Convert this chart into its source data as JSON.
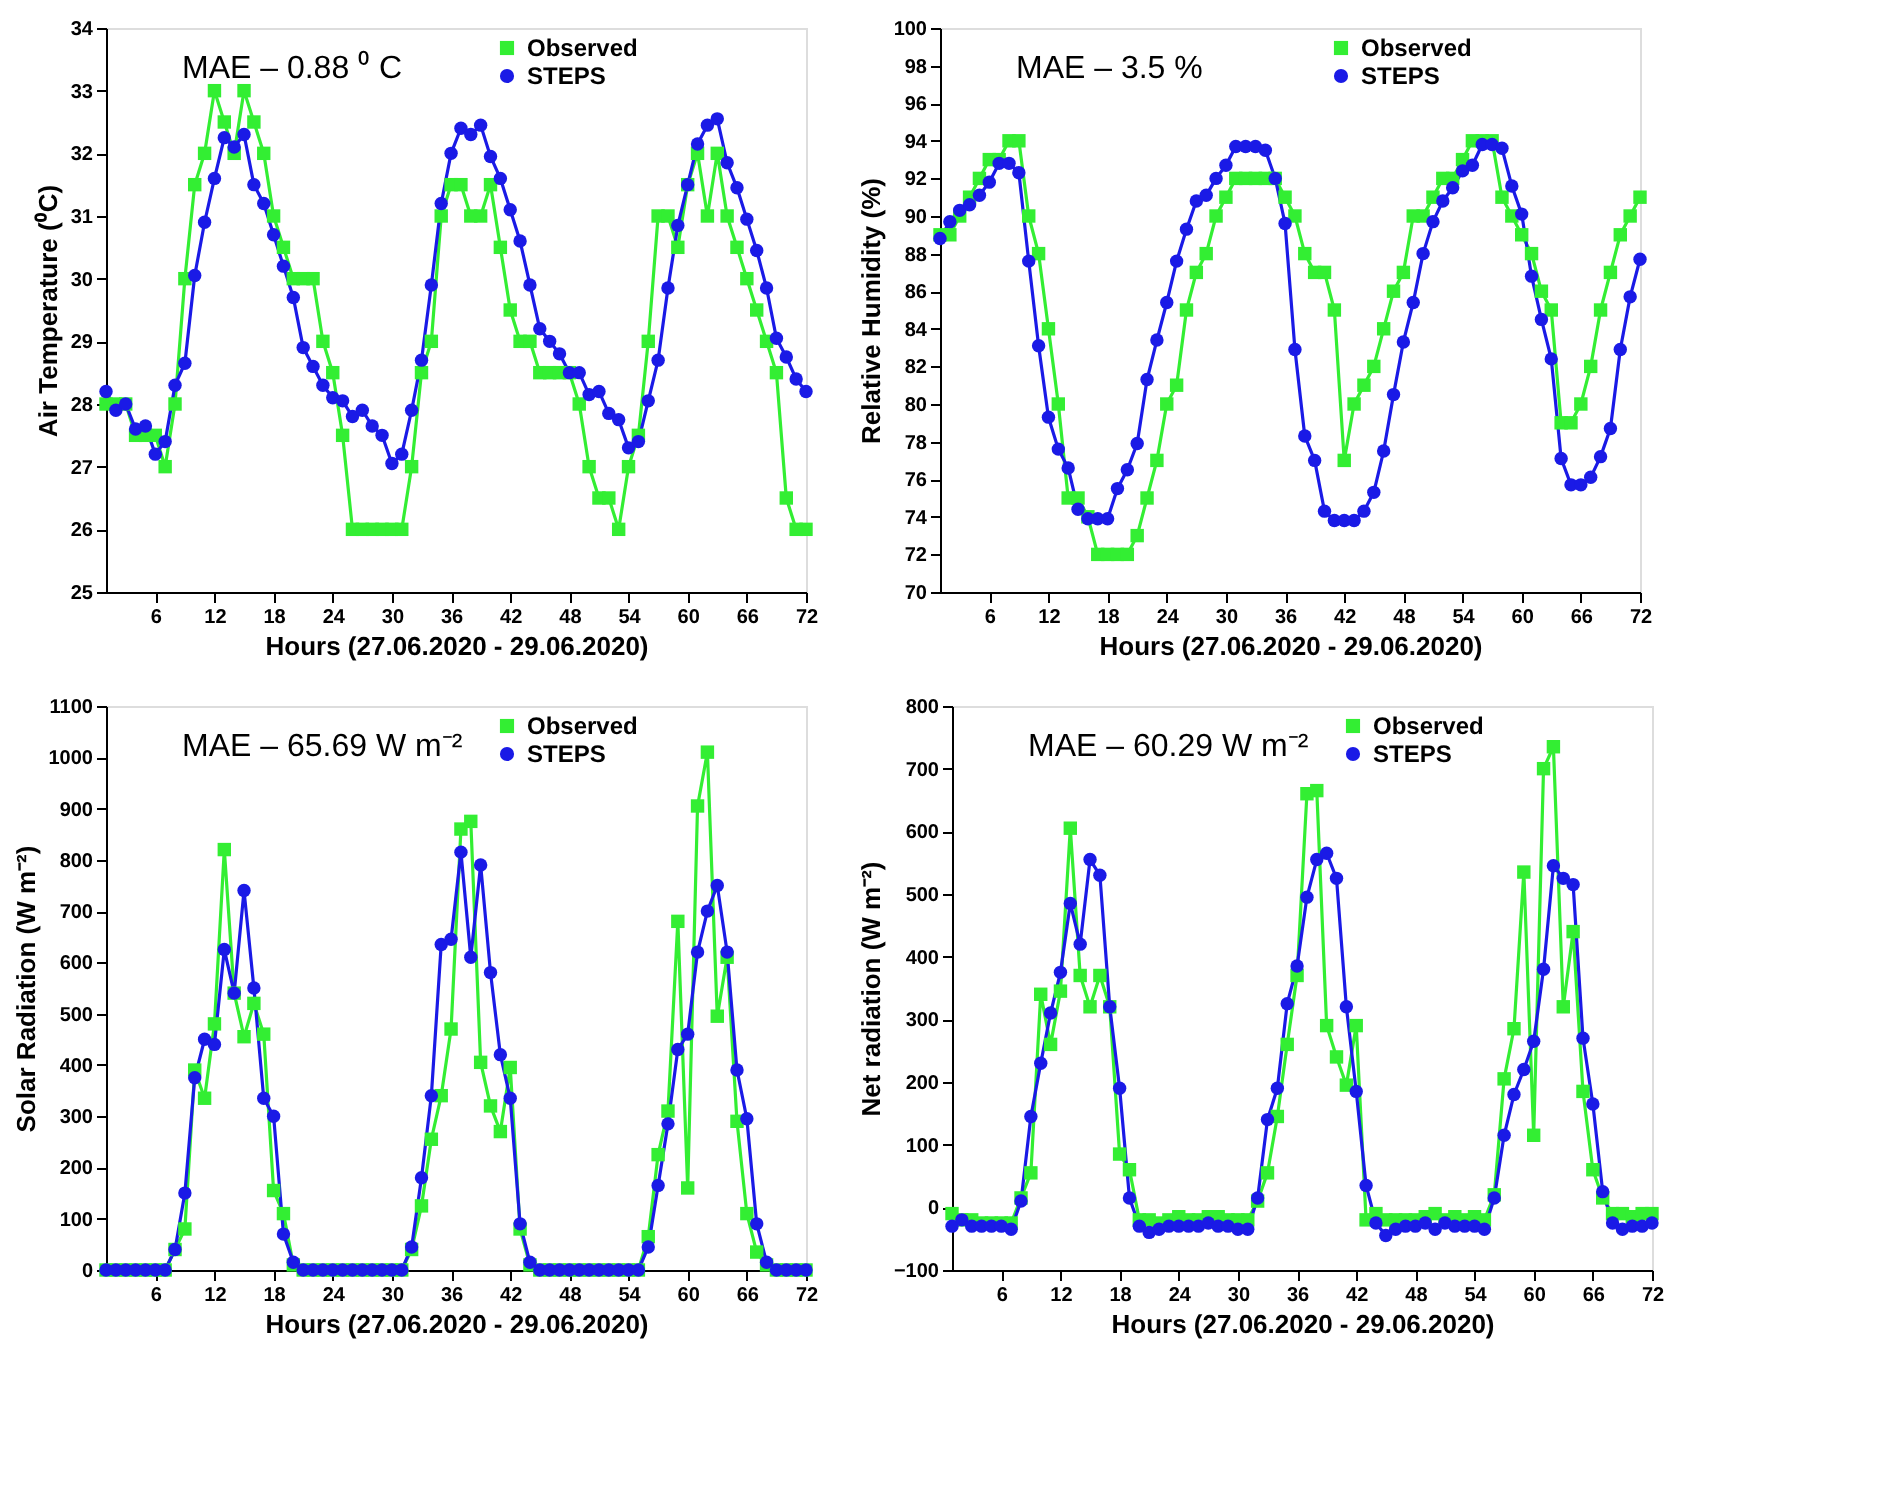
{
  "chart_data": [
    {
      "type": "line",
      "xlabel": "Hours (27.06.2020 - 29.06.2020)",
      "ylabel": "Air Temperature (⁰C)",
      "annotations": [
        "MAE – 0.88 ⁰ C"
      ],
      "xlim": [
        1,
        72
      ],
      "xticks": [
        6,
        12,
        18,
        24,
        30,
        36,
        42,
        48,
        54,
        60,
        66,
        72
      ],
      "ylim": [
        25,
        34
      ],
      "yticks": [
        25,
        26,
        27,
        28,
        29,
        30,
        31,
        32,
        33,
        34
      ],
      "grid": false,
      "legend": "top right",
      "x": [
        1,
        2,
        3,
        4,
        5,
        6,
        7,
        8,
        9,
        10,
        11,
        12,
        13,
        14,
        15,
        16,
        17,
        18,
        19,
        20,
        21,
        22,
        23,
        24,
        25,
        26,
        27,
        28,
        29,
        30,
        31,
        32,
        33,
        34,
        35,
        36,
        37,
        38,
        39,
        40,
        41,
        42,
        43,
        44,
        45,
        46,
        47,
        48,
        49,
        50,
        51,
        52,
        53,
        54,
        55,
        56,
        57,
        58,
        59,
        60,
        61,
        62,
        63,
        64,
        65,
        66,
        67,
        68,
        69,
        70,
        71,
        72
      ],
      "series": [
        {
          "name": "Observed",
          "color": "#33ee33",
          "marker": "square",
          "values": [
            28,
            28,
            28,
            27.5,
            27.5,
            27.5,
            27,
            28,
            30,
            31.5,
            32,
            33,
            32.5,
            32,
            33,
            32.5,
            32,
            31,
            30.5,
            30,
            30,
            30,
            29,
            28.5,
            27.5,
            26,
            26,
            26,
            26,
            26,
            26,
            27,
            28.5,
            29,
            31,
            31.5,
            31.5,
            31,
            31,
            31.5,
            30.5,
            29.5,
            29,
            29,
            28.5,
            28.5,
            28.5,
            28.5,
            28,
            27,
            26.5,
            26.5,
            26,
            27,
            27.5,
            29,
            31,
            31,
            30.5,
            31.5,
            32,
            31,
            32,
            31,
            30.5,
            30,
            29.5,
            29,
            28.5,
            26.5,
            26,
            26
          ]
        },
        {
          "name": "STEPS",
          "color": "#1a1ae6",
          "marker": "circle",
          "values": [
            28.2,
            27.9,
            28,
            27.6,
            27.65,
            27.2,
            27.4,
            28.3,
            28.65,
            30.05,
            30.9,
            31.6,
            32.25,
            32.1,
            32.3,
            31.5,
            31.2,
            30.7,
            30.2,
            29.7,
            28.9,
            28.6,
            28.3,
            28.1,
            28.05,
            27.8,
            27.9,
            27.65,
            27.5,
            27.05,
            27.2,
            27.9,
            28.7,
            29.9,
            31.2,
            32,
            32.4,
            32.3,
            32.45,
            31.95,
            31.6,
            31.1,
            30.6,
            29.9,
            29.2,
            29,
            28.8,
            28.5,
            28.5,
            28.15,
            28.2,
            27.85,
            27.75,
            27.3,
            27.4,
            28.05,
            28.7,
            29.85,
            30.85,
            31.5,
            32.15,
            32.45,
            32.55,
            31.85,
            31.45,
            30.95,
            30.45,
            29.85,
            29.05,
            28.75,
            28.4,
            28.2
          ]
        }
      ]
    },
    {
      "type": "line",
      "xlabel": "Hours (27.06.2020 - 29.06.2020)",
      "ylabel": "Relative Humidity (%)",
      "annotations": [
        "MAE – 3.5 %"
      ],
      "xlim": [
        1,
        72
      ],
      "xticks": [
        6,
        12,
        18,
        24,
        30,
        36,
        42,
        48,
        54,
        60,
        66,
        72
      ],
      "ylim": [
        70,
        100
      ],
      "yticks": [
        70,
        72,
        74,
        76,
        78,
        80,
        82,
        84,
        86,
        88,
        90,
        92,
        94,
        96,
        98,
        100
      ],
      "grid": false,
      "legend": "top right",
      "x": [
        1,
        2,
        3,
        4,
        5,
        6,
        7,
        8,
        9,
        10,
        11,
        12,
        13,
        14,
        15,
        16,
        17,
        18,
        19,
        20,
        21,
        22,
        23,
        24,
        25,
        26,
        27,
        28,
        29,
        30,
        31,
        32,
        33,
        34,
        35,
        36,
        37,
        38,
        39,
        40,
        41,
        42,
        43,
        44,
        45,
        46,
        47,
        48,
        49,
        50,
        51,
        52,
        53,
        54,
        55,
        56,
        57,
        58,
        59,
        60,
        61,
        62,
        63,
        64,
        65,
        66,
        67,
        68,
        69,
        70,
        71,
        72
      ],
      "series": [
        {
          "name": "Observed",
          "color": "#33ee33",
          "marker": "square",
          "values": [
            89,
            89,
            90,
            91,
            92,
            93,
            93,
            94,
            94,
            90,
            88,
            84,
            80,
            75,
            75,
            74,
            72,
            72,
            72,
            72,
            73,
            75,
            77,
            80,
            81,
            85,
            87,
            88,
            90,
            91,
            92,
            92,
            92,
            92,
            92,
            91,
            90,
            88,
            87,
            87,
            85,
            77,
            80,
            81,
            82,
            84,
            86,
            87,
            90,
            90,
            91,
            92,
            92,
            93,
            94,
            94,
            94,
            91,
            90,
            89,
            88,
            86,
            85,
            79,
            79,
            80,
            82,
            85,
            87,
            89,
            90,
            91
          ]
        },
        {
          "name": "STEPS",
          "color": "#1a1ae6",
          "marker": "circle",
          "values": [
            88.8,
            89.7,
            90.3,
            90.6,
            91.1,
            91.8,
            92.8,
            92.8,
            92.3,
            87.6,
            83.1,
            79.3,
            77.6,
            76.6,
            74.4,
            73.9,
            73.9,
            73.9,
            75.5,
            76.5,
            77.9,
            81.3,
            83.4,
            85.4,
            87.6,
            89.3,
            90.8,
            91.1,
            92,
            92.7,
            93.7,
            93.7,
            93.7,
            93.5,
            92,
            89.6,
            82.9,
            78.3,
            77,
            74.3,
            73.8,
            73.8,
            73.8,
            74.3,
            75.3,
            77.5,
            80.5,
            83.3,
            85.4,
            88,
            89.7,
            90.8,
            91.5,
            92.4,
            92.7,
            93.8,
            93.8,
            93.6,
            91.6,
            90.1,
            86.8,
            84.5,
            82.4,
            77.1,
            75.7,
            75.7,
            76.1,
            77.2,
            78.7,
            82.9,
            85.7,
            87.7
          ]
        }
      ]
    },
    {
      "type": "line",
      "xlabel": "Hours (27.06.2020 - 29.06.2020)",
      "ylabel": "Solar Radiation (W m⁻²)",
      "annotations": [
        "MAE – 65.69 W m⁻²"
      ],
      "xlim": [
        1,
        72
      ],
      "xticks": [
        6,
        12,
        18,
        24,
        30,
        36,
        42,
        48,
        54,
        60,
        66,
        72
      ],
      "ylim": [
        0,
        1100
      ],
      "yticks": [
        0,
        100,
        200,
        300,
        400,
        500,
        600,
        700,
        800,
        900,
        1000,
        1100
      ],
      "grid": false,
      "legend": "top right",
      "x": [
        1,
        2,
        3,
        4,
        5,
        6,
        7,
        8,
        9,
        10,
        11,
        12,
        13,
        14,
        15,
        16,
        17,
        18,
        19,
        20,
        21,
        22,
        23,
        24,
        25,
        26,
        27,
        28,
        29,
        30,
        31,
        32,
        33,
        34,
        35,
        36,
        37,
        38,
        39,
        40,
        41,
        42,
        43,
        44,
        45,
        46,
        47,
        48,
        49,
        50,
        51,
        52,
        53,
        54,
        55,
        56,
        57,
        58,
        59,
        60,
        61,
        62,
        63,
        64,
        65,
        66,
        67,
        68,
        69,
        70,
        71,
        72
      ],
      "series": [
        {
          "name": "Observed",
          "color": "#33ee33",
          "marker": "square",
          "values": [
            0,
            0,
            0,
            0,
            0,
            0,
            0,
            40,
            80,
            390,
            335,
            480,
            820,
            540,
            455,
            520,
            460,
            155,
            110,
            10,
            0,
            0,
            0,
            0,
            0,
            0,
            0,
            0,
            0,
            0,
            0,
            40,
            125,
            255,
            340,
            470,
            860,
            875,
            405,
            320,
            270,
            395,
            80,
            10,
            0,
            0,
            0,
            0,
            0,
            0,
            0,
            0,
            0,
            0,
            0,
            65,
            225,
            310,
            680,
            160,
            905,
            1010,
            495,
            610,
            290,
            110,
            35,
            10,
            0,
            0,
            0,
            0
          ]
        },
        {
          "name": "STEPS",
          "color": "#1a1ae6",
          "marker": "circle",
          "values": [
            0,
            0,
            0,
            0,
            0,
            0,
            0,
            40,
            150,
            375,
            450,
            440,
            625,
            540,
            740,
            550,
            335,
            300,
            70,
            15,
            0,
            0,
            0,
            0,
            0,
            0,
            0,
            0,
            0,
            0,
            0,
            45,
            180,
            340,
            635,
            645,
            815,
            610,
            790,
            580,
            420,
            335,
            90,
            15,
            0,
            0,
            0,
            0,
            0,
            0,
            0,
            0,
            0,
            0,
            0,
            45,
            165,
            285,
            430,
            460,
            620,
            700,
            750,
            620,
            390,
            295,
            90,
            15,
            0,
            0,
            0,
            0
          ]
        }
      ]
    },
    {
      "type": "line",
      "xlabel": "Hours (27.06.2020 - 29.06.2020)",
      "ylabel": "Net radiation (W m⁻²)",
      "annotations": [
        "MAE – 60.29 W m⁻²"
      ],
      "xlim": [
        1,
        72
      ],
      "xticks": [
        6,
        12,
        18,
        24,
        30,
        36,
        42,
        48,
        54,
        60,
        66,
        72
      ],
      "ylim": [
        -100,
        800
      ],
      "yticks": [
        -100,
        0,
        100,
        200,
        300,
        400,
        500,
        600,
        700,
        800
      ],
      "grid": false,
      "legend": "top right",
      "x": [
        1,
        2,
        3,
        4,
        5,
        6,
        7,
        8,
        9,
        10,
        11,
        12,
        13,
        14,
        15,
        16,
        17,
        18,
        19,
        20,
        21,
        22,
        23,
        24,
        25,
        26,
        27,
        28,
        29,
        30,
        31,
        32,
        33,
        34,
        35,
        36,
        37,
        38,
        39,
        40,
        41,
        42,
        43,
        44,
        45,
        46,
        47,
        48,
        49,
        50,
        51,
        52,
        53,
        54,
        55,
        56,
        57,
        58,
        59,
        60,
        61,
        62,
        63,
        64,
        65,
        66,
        67,
        68,
        69,
        70,
        71,
        72
      ],
      "series": [
        {
          "name": "Observed",
          "color": "#33ee33",
          "marker": "square",
          "values": [
            -10,
            -20,
            -20,
            -25,
            -25,
            -25,
            -25,
            15,
            55,
            340,
            260,
            345,
            605,
            370,
            320,
            370,
            320,
            85,
            60,
            -20,
            -20,
            -25,
            -20,
            -15,
            -20,
            -20,
            -15,
            -15,
            -20,
            -20,
            -20,
            10,
            55,
            145,
            260,
            370,
            660,
            665,
            290,
            240,
            195,
            290,
            -20,
            -10,
            -20,
            -20,
            -20,
            -20,
            -15,
            -10,
            -20,
            -15,
            -20,
            -15,
            -20,
            20,
            205,
            285,
            535,
            115,
            700,
            735,
            320,
            440,
            185,
            60,
            15,
            -10,
            -10,
            -15,
            -10,
            -10
          ]
        },
        {
          "name": "STEPS",
          "color": "#1a1ae6",
          "marker": "circle",
          "values": [
            -30,
            -20,
            -30,
            -30,
            -30,
            -30,
            -35,
            10,
            145,
            230,
            310,
            375,
            485,
            420,
            555,
            530,
            320,
            190,
            15,
            -30,
            -40,
            -35,
            -30,
            -30,
            -30,
            -30,
            -25,
            -30,
            -30,
            -35,
            -35,
            15,
            140,
            190,
            325,
            385,
            495,
            555,
            565,
            525,
            320,
            185,
            35,
            -25,
            -45,
            -35,
            -30,
            -30,
            -25,
            -35,
            -25,
            -30,
            -30,
            -30,
            -35,
            15,
            115,
            180,
            220,
            265,
            380,
            545,
            525,
            515,
            270,
            165,
            25,
            -25,
            -35,
            -30,
            -30,
            -25
          ]
        }
      ]
    }
  ]
}
